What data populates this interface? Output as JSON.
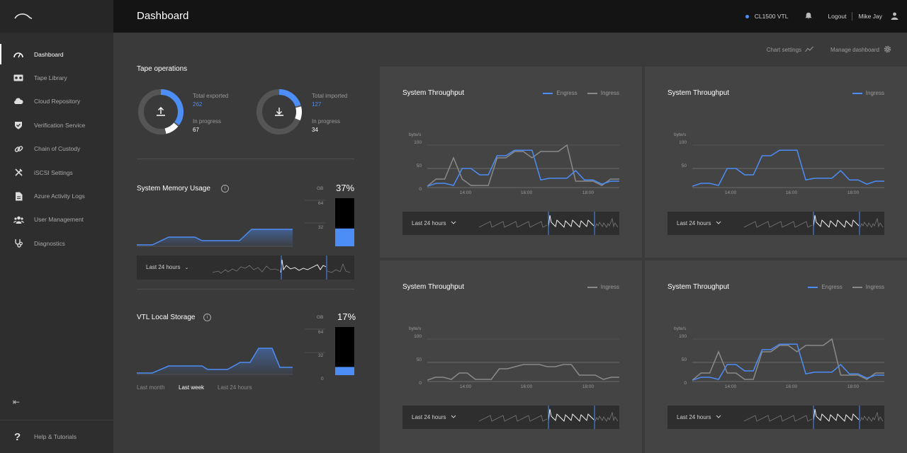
{
  "header": {
    "title": "Dashboard",
    "device": "CL1500 VTL",
    "logout": "Logout",
    "user": "Mike Jay"
  },
  "sidebar": {
    "items": [
      {
        "label": "Dashboard",
        "icon": "gauge-icon",
        "active": true
      },
      {
        "label": "Tape Library",
        "icon": "tape-icon"
      },
      {
        "label": "Cloud Repository",
        "icon": "cloud-icon"
      },
      {
        "label": "Verification Service",
        "icon": "shield-check-icon"
      },
      {
        "label": "Chain of Custody",
        "icon": "link-icon"
      },
      {
        "label": "iSCSI Settings",
        "icon": "tools-icon"
      },
      {
        "label": "Azure Activity Logs",
        "icon": "document-icon"
      },
      {
        "label": "User Management",
        "icon": "users-icon"
      },
      {
        "label": "Diagnostics",
        "icon": "stethoscope-icon"
      }
    ],
    "collapse": "⇤",
    "help": {
      "glyph": "?",
      "label": "Help & Tutorials"
    }
  },
  "toolbar": {
    "chart_settings": "Chart settings",
    "manage_dashboard": "Manage dashboard"
  },
  "tape_operations": {
    "title": "Tape operations",
    "exported": {
      "label": "Total exported",
      "value": "262",
      "progress_label": "In progress",
      "progress_value": "67",
      "fraction": 0.35
    },
    "imported": {
      "label": "Total imported",
      "value": "127",
      "progress_label": "In progress",
      "progress_value": "34",
      "fraction": 0.2
    }
  },
  "memory": {
    "title": "System Memory Usage",
    "unit": "GB",
    "percent": "37%",
    "fill": 0.37,
    "ticks": [
      "64",
      "32"
    ],
    "range": "Last 24 hours"
  },
  "storage": {
    "title": "VTL Local Storage",
    "unit": "GB",
    "percent": "17%",
    "fill": 0.17,
    "ticks": [
      "64",
      "32",
      "0"
    ],
    "periods": [
      "Last month",
      "Last week",
      "Last 24 hours"
    ],
    "active_period": "Last week"
  },
  "panels": [
    {
      "title": "System Throughput",
      "legend": [
        "Engress",
        "Ingress"
      ],
      "y_unit": "byte/s",
      "y_ticks": [
        "100",
        "50",
        "0"
      ],
      "x_ticks": [
        "14:00",
        "16:00",
        "18:00"
      ],
      "range": "Last 24 hours"
    },
    {
      "title": "System Throughput",
      "legend": [
        "Ingress"
      ],
      "y_unit": "byte/s",
      "y_ticks": [
        "100",
        "50"
      ],
      "x_ticks": [
        "14:00",
        "16:00",
        "18:00"
      ],
      "range": "Last 24 hours"
    },
    {
      "title": "System Throughput",
      "legend": [
        "Ingress"
      ],
      "y_unit": "byte/s",
      "y_ticks": [
        "100",
        "50",
        "0"
      ],
      "x_ticks": [
        "14:00",
        "16:00",
        "18:00"
      ],
      "range": "Last 24 hours"
    },
    {
      "title": "System Throughput",
      "legend": [
        "Engress",
        "Ingress"
      ],
      "y_unit": "byte/s",
      "y_ticks": [
        "100",
        "50",
        "0"
      ],
      "x_ticks": [
        "14:00",
        "16:00",
        "18:00"
      ],
      "range": "Last 24 hours"
    }
  ],
  "chart_data": [
    {
      "type": "line",
      "title": "System Throughput",
      "ylabel": "byte/s",
      "ylim": [
        0,
        100
      ],
      "series": [
        {
          "name": "Engress",
          "color": "#4c8df6",
          "values": [
            3,
            10,
            10,
            5,
            45,
            45,
            30,
            30,
            75,
            75,
            88,
            88,
            88,
            18,
            22,
            22,
            22,
            40,
            18,
            18,
            8,
            15,
            15
          ]
        },
        {
          "name": "Ingress",
          "color": "#8a8a8a",
          "values": [
            3,
            20,
            20,
            70,
            20,
            5,
            5,
            5,
            70,
            70,
            85,
            85,
            70,
            85,
            85,
            85,
            100,
            15,
            15,
            15,
            5,
            20,
            20
          ]
        }
      ]
    },
    {
      "type": "line",
      "title": "System Throughput",
      "ylabel": "byte/s",
      "ylim": [
        0,
        100
      ],
      "series": [
        {
          "name": "Ingress",
          "color": "#4c8df6",
          "values": [
            3,
            10,
            10,
            5,
            45,
            45,
            30,
            30,
            75,
            75,
            88,
            88,
            88,
            18,
            22,
            22,
            22,
            40,
            18,
            18,
            8,
            15,
            15
          ]
        }
      ]
    },
    {
      "type": "line",
      "title": "System Throughput",
      "ylabel": "byte/s",
      "ylim": [
        0,
        100
      ],
      "series": [
        {
          "name": "Ingress",
          "color": "#8a8a8a",
          "values": [
            3,
            10,
            10,
            5,
            20,
            20,
            5,
            5,
            5,
            30,
            30,
            35,
            40,
            40,
            40,
            35,
            35,
            40,
            40,
            15,
            15,
            15,
            5,
            10,
            10
          ]
        }
      ]
    },
    {
      "type": "line",
      "title": "System Throughput",
      "ylabel": "byte/s",
      "ylim": [
        0,
        100
      ],
      "series": [
        {
          "name": "Engress",
          "color": "#4c8df6",
          "values": [
            3,
            10,
            10,
            5,
            40,
            40,
            25,
            25,
            75,
            75,
            88,
            88,
            88,
            18,
            22,
            22,
            22,
            40,
            18,
            18,
            8,
            15,
            15
          ]
        },
        {
          "name": "Ingress",
          "color": "#8a8a8a",
          "values": [
            3,
            20,
            20,
            70,
            20,
            20,
            5,
            5,
            70,
            70,
            85,
            85,
            70,
            85,
            85,
            85,
            100,
            15,
            15,
            15,
            5,
            20,
            20
          ]
        }
      ]
    }
  ]
}
